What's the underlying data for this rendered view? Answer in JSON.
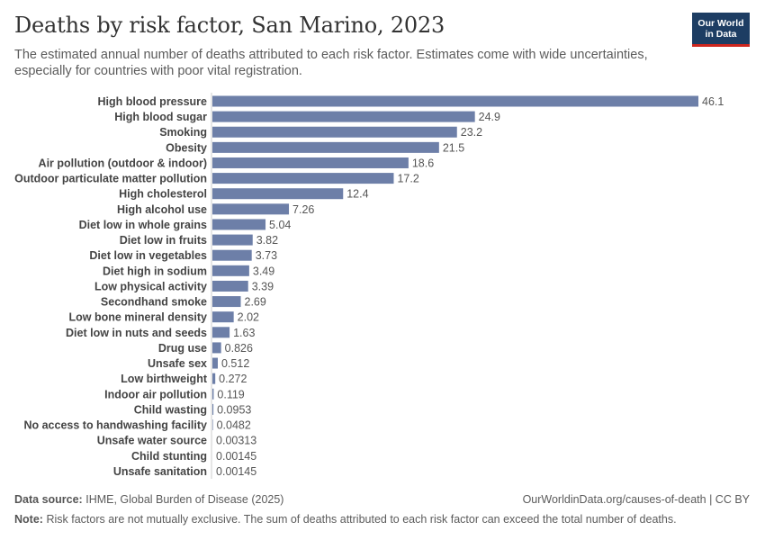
{
  "header": {
    "title": "Deaths by risk factor, San Marino, 2023",
    "subtitle": "The estimated annual number of deaths attributed to each risk factor. Estimates come with wide uncertainties, especially for countries with poor vital registration."
  },
  "logo": {
    "line1": "Our World",
    "line2": "in Data"
  },
  "footer": {
    "source_label": "Data source:",
    "source_text": "IHME, Global Burden of Disease (2025)",
    "url": "OurWorldinData.org/causes-of-death | CC BY",
    "note_label": "Note:",
    "note_text": "Risk factors are not mutually exclusive. The sum of deaths attributed to each risk factor can exceed the total number of deaths."
  },
  "colors": {
    "bar": "#6d7fa8",
    "axis": "#cccccc"
  },
  "chart_data": {
    "type": "bar",
    "orientation": "horizontal",
    "title": "Deaths by risk factor, San Marino, 2023",
    "xlim": [
      0,
      46.1
    ],
    "categories": [
      "High blood pressure",
      "High blood sugar",
      "Smoking",
      "Obesity",
      "Air pollution (outdoor & indoor)",
      "Outdoor particulate matter pollution",
      "High cholesterol",
      "High alcohol use",
      "Diet low in whole grains",
      "Diet low in fruits",
      "Diet low in vegetables",
      "Diet high in sodium",
      "Low physical activity",
      "Secondhand smoke",
      "Low bone mineral density",
      "Diet low in nuts and seeds",
      "Drug use",
      "Unsafe sex",
      "Low birthweight",
      "Indoor air pollution",
      "Child wasting",
      "No access to handwashing facility",
      "Unsafe water source",
      "Child stunting",
      "Unsafe sanitation"
    ],
    "values": [
      46.1,
      24.9,
      23.2,
      21.5,
      18.6,
      17.2,
      12.4,
      7.26,
      5.04,
      3.82,
      3.73,
      3.49,
      3.39,
      2.69,
      2.02,
      1.63,
      0.826,
      0.512,
      0.272,
      0.119,
      0.0953,
      0.0482,
      0.00313,
      0.00145,
      0.00145
    ],
    "value_labels": [
      "46.1",
      "24.9",
      "23.2",
      "21.5",
      "18.6",
      "17.2",
      "12.4",
      "7.26",
      "5.04",
      "3.82",
      "3.73",
      "3.49",
      "3.39",
      "2.69",
      "2.02",
      "1.63",
      "0.826",
      "0.512",
      "0.272",
      "0.119",
      "0.0953",
      "0.0482",
      "0.00313",
      "0.00145",
      "0.00145"
    ]
  }
}
